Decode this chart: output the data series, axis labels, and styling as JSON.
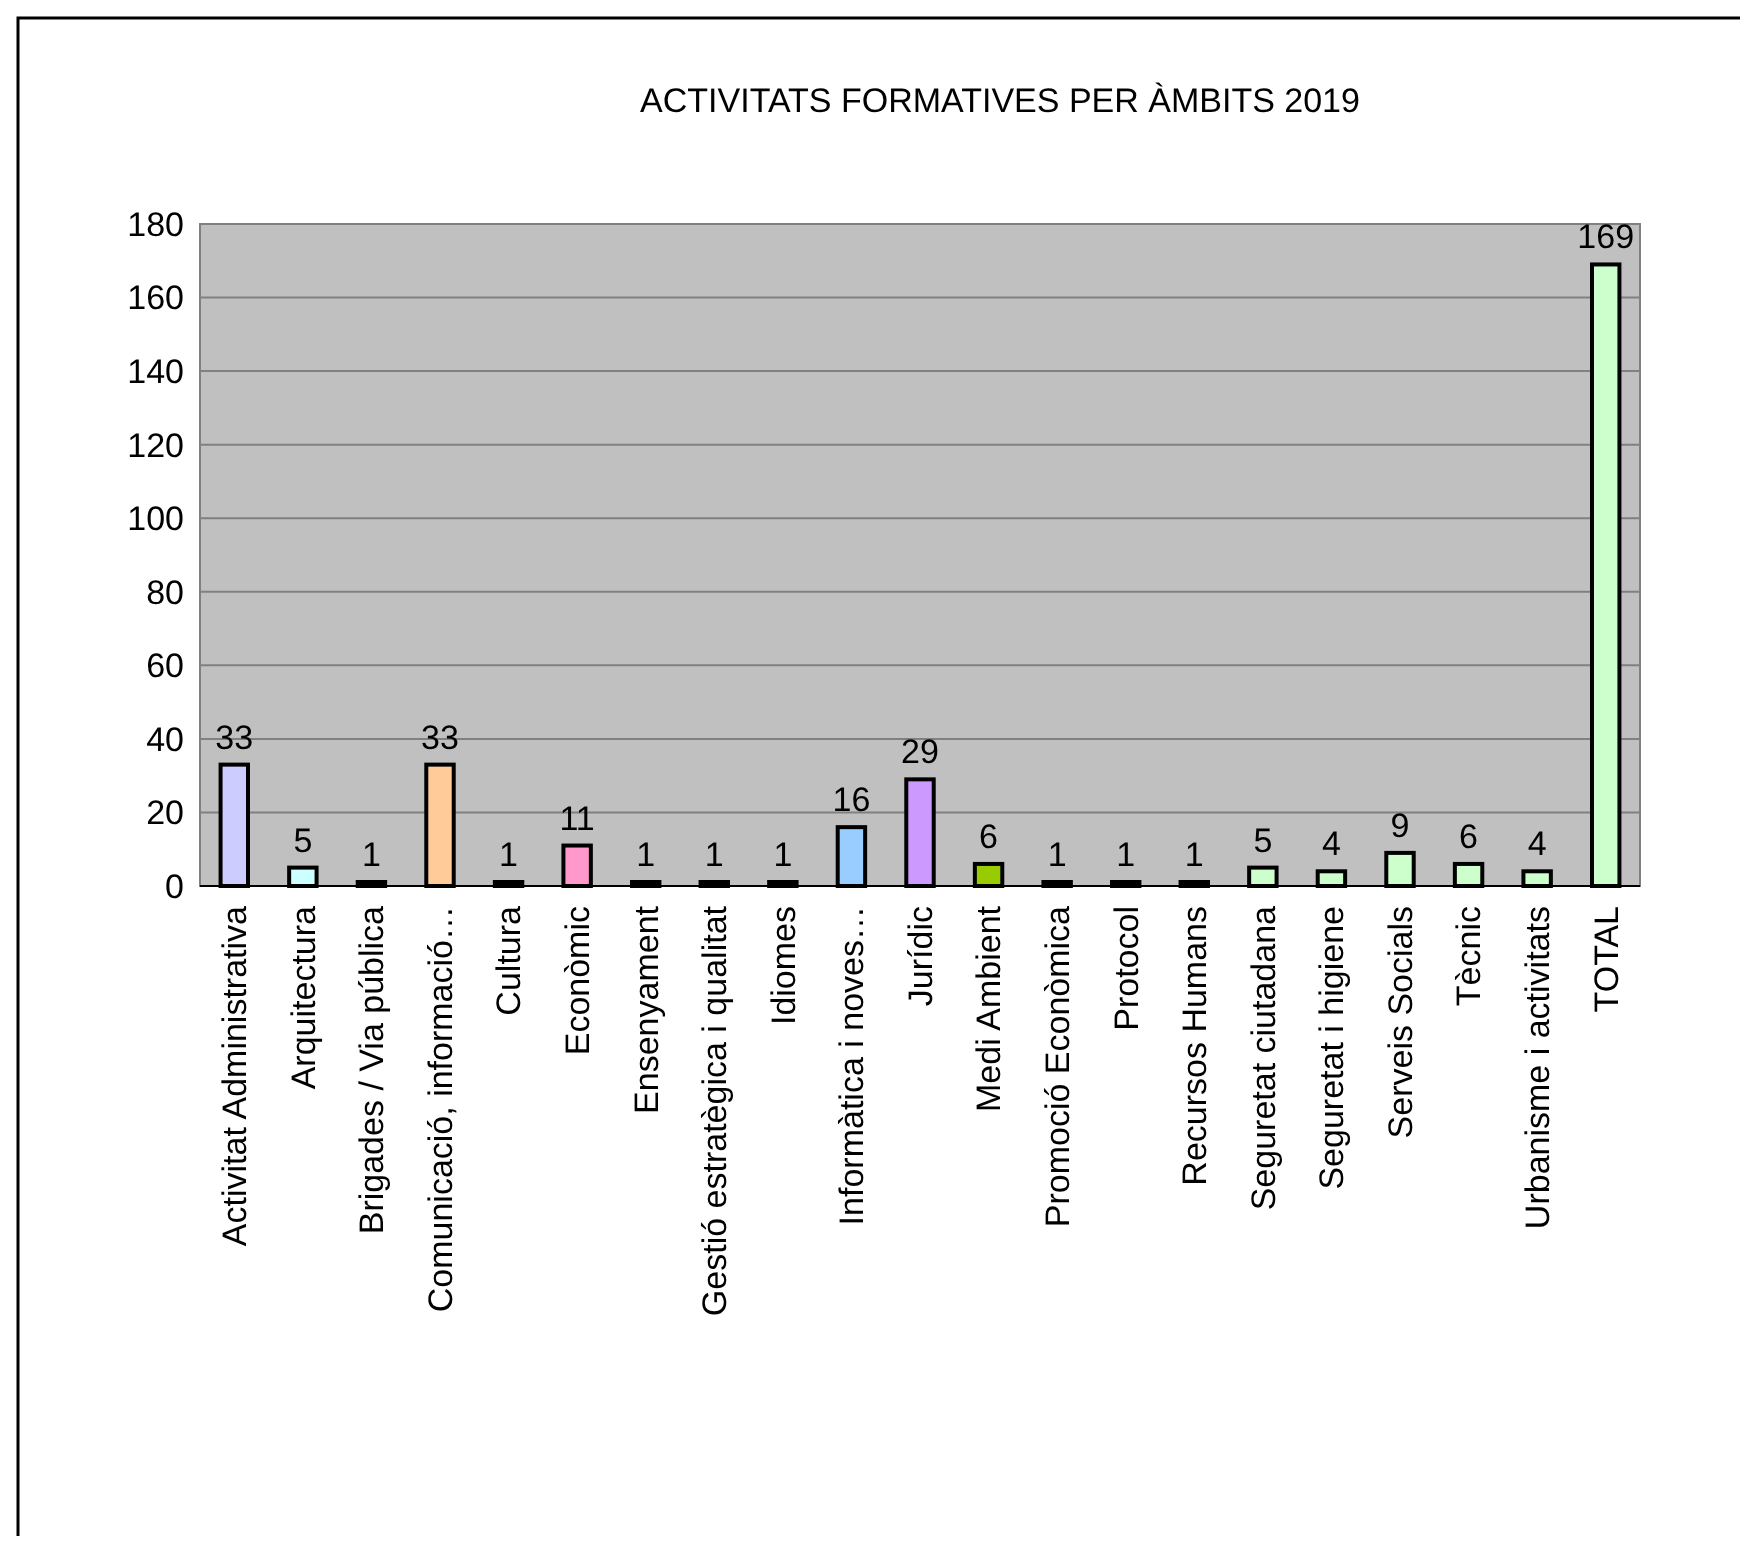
{
  "chart_data": {
    "type": "bar",
    "title": "ACTIVITATS FORMATIVES PER ÀMBITS 2019",
    "categories": [
      "Activitat  Administrativa",
      "Arquitectura",
      "Brigades / Via pública",
      "Comunicació,  informació…",
      "Cultura",
      "Econòmic",
      "Ensenyament",
      "Gestió estratègica i qualitat",
      "Idiomes",
      "Informàtica i noves…",
      "Jurídic",
      "Medi Ambient",
      "Promoció  Econòmica",
      "Protocol",
      "Recursos Humans",
      "Seguretat ciutadana",
      "Seguretat i higiene",
      "Serveis Socials",
      "Tècnic",
      "Urbanisme i activitats",
      "TOTAL"
    ],
    "values": [
      33,
      5,
      1,
      33,
      1,
      11,
      1,
      1,
      1,
      16,
      29,
      6,
      1,
      1,
      1,
      5,
      4,
      9,
      6,
      4,
      169
    ],
    "colors": [
      "#ccccff",
      "#ccffff",
      "#ccffcc",
      "#ffcc99",
      "#ccffcc",
      "#ff99cc",
      "#ccffcc",
      "#ccffcc",
      "#ccffcc",
      "#99ccff",
      "#cc99ff",
      "#99cc00",
      "#ccffcc",
      "#ccffcc",
      "#ccffcc",
      "#ccffcc",
      "#ccffcc",
      "#ccffcc",
      "#ccffcc",
      "#ccffcc",
      "#ccffcc"
    ],
    "ylim": [
      0,
      180
    ],
    "yticks": [
      0,
      20,
      40,
      60,
      80,
      100,
      120,
      140,
      160,
      180
    ],
    "grid": "y",
    "data_labels": true
  }
}
